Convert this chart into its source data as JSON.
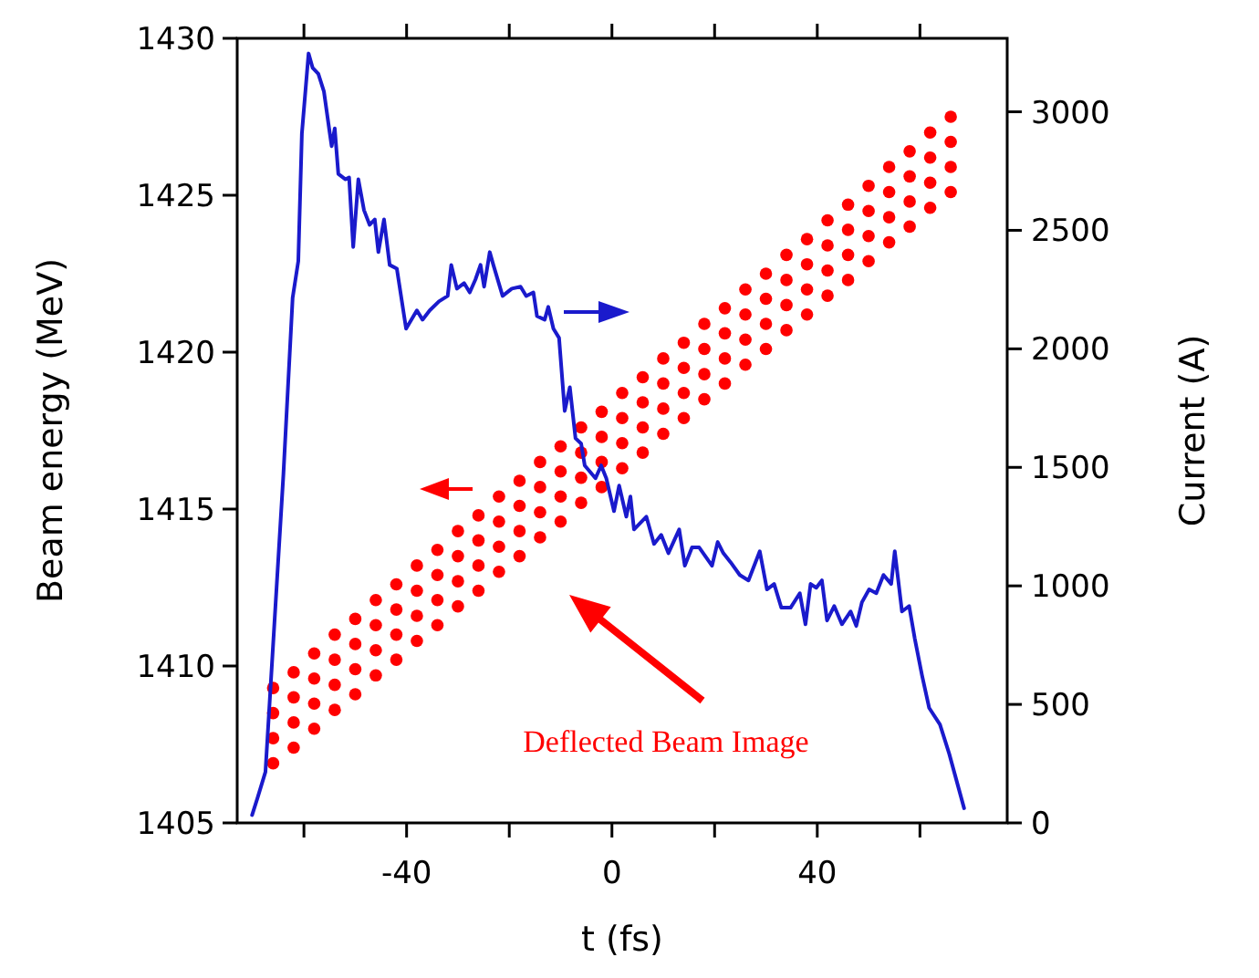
{
  "chart_data": {
    "type": "scatter",
    "xlabel": "t (fs)",
    "ylabel": "Beam energy (MeV)",
    "y2label": "Current (A)",
    "xlim": [
      -73,
      77
    ],
    "ylim": [
      1405,
      1430
    ],
    "y2lim": [
      0,
      3310
    ],
    "xticks": [
      {
        "value": -60,
        "label": null
      },
      -40,
      {
        "value": -20,
        "label": null
      },
      0,
      {
        "value": 20,
        "label": null
      },
      40,
      {
        "value": 60,
        "label": null
      }
    ],
    "yticks": [
      1405,
      1410,
      1415,
      1420,
      1425,
      1430
    ],
    "y2ticks": [
      0,
      500,
      1000,
      1500,
      2000,
      2500,
      3000
    ],
    "grid": false,
    "annotations": [
      "Deflected Beam Image"
    ],
    "series": [
      {
        "color": "#ff0000",
        "marker": "circle",
        "x": [
          -66,
          -66,
          -66,
          -66,
          -62,
          -62,
          -62,
          -62,
          -58,
          -58,
          -58,
          -58,
          -54,
          -54,
          -54,
          -54,
          -50,
          -50,
          -50,
          -50,
          -46,
          -46,
          -46,
          -46,
          -42,
          -42,
          -42,
          -42,
          -38,
          -38,
          -38,
          -38,
          -34,
          -34,
          -34,
          -34,
          -30,
          -30,
          -30,
          -30,
          -26,
          -26,
          -26,
          -26,
          -22,
          -22,
          -22,
          -22,
          -18,
          -18,
          -18,
          -18,
          -14,
          -14,
          -14,
          -14,
          -10,
          -10,
          -10,
          -10,
          -6,
          -6,
          -6,
          -6,
          -2,
          -2,
          -2,
          -2,
          2,
          2,
          2,
          2,
          6,
          6,
          6,
          6,
          10,
          10,
          10,
          10,
          14,
          14,
          14,
          14,
          18,
          18,
          18,
          18,
          22,
          22,
          22,
          22,
          26,
          26,
          26,
          26,
          30,
          30,
          30,
          30,
          34,
          34,
          34,
          34,
          38,
          38,
          38,
          38,
          42,
          42,
          42,
          42,
          46,
          46,
          46,
          46,
          50,
          50,
          50,
          50,
          54,
          54,
          54,
          54,
          58,
          58,
          58,
          58,
          62,
          62,
          62,
          62,
          66,
          66,
          66,
          66
        ],
        "values": [
          1406.9,
          1407.7,
          1408.5,
          1409.3,
          1407.4,
          1408.2,
          1409.0,
          1409.8,
          1408.0,
          1408.8,
          1409.6,
          1410.4,
          1408.6,
          1409.4,
          1410.2,
          1411.0,
          1409.1,
          1409.9,
          1410.7,
          1411.5,
          1409.7,
          1410.5,
          1411.3,
          1412.1,
          1410.2,
          1411.0,
          1411.8,
          1412.6,
          1410.8,
          1411.6,
          1412.4,
          1413.2,
          1411.3,
          1412.1,
          1412.9,
          1413.7,
          1411.9,
          1412.7,
          1413.5,
          1414.3,
          1412.4,
          1413.2,
          1414.0,
          1414.8,
          1413.0,
          1413.8,
          1414.6,
          1415.4,
          1413.5,
          1414.3,
          1415.1,
          1415.9,
          1414.1,
          1414.9,
          1415.7,
          1416.5,
          1414.6,
          1415.4,
          1416.2,
          1417.0,
          1415.2,
          1416.0,
          1416.8,
          1417.6,
          1415.7,
          1416.5,
          1417.3,
          1418.1,
          1416.3,
          1417.1,
          1417.9,
          1418.7,
          1416.8,
          1417.6,
          1418.4,
          1419.2,
          1417.4,
          1418.2,
          1419.0,
          1419.8,
          1417.9,
          1418.7,
          1419.5,
          1420.3,
          1418.5,
          1419.3,
          1420.1,
          1420.9,
          1419.0,
          1419.8,
          1420.6,
          1421.4,
          1419.6,
          1420.4,
          1421.2,
          1422.0,
          1420.1,
          1420.9,
          1421.7,
          1422.5,
          1420.7,
          1421.5,
          1422.3,
          1423.1,
          1421.2,
          1422.0,
          1422.8,
          1423.6,
          1421.8,
          1422.6,
          1423.4,
          1424.2,
          1422.3,
          1423.1,
          1423.9,
          1424.7,
          1422.9,
          1423.7,
          1424.5,
          1425.3,
          1423.5,
          1424.3,
          1425.1,
          1425.9,
          1424.0,
          1424.8,
          1425.6,
          1426.4,
          1424.6,
          1425.4,
          1426.2,
          1427.0,
          1425.1,
          1425.9,
          1426.7,
          1427.5
        ]
      },
      {
        "type": "line",
        "axis": "y2",
        "color": "#1a1acc",
        "line_style": "solid",
        "x": [
          -70.1,
          -69,
          -67.5,
          -64,
          -62.2,
          -61.1,
          -60.4,
          -59.1,
          -58.3,
          -57.2,
          -56.1,
          -55,
          -54.6,
          -54,
          -53.3,
          -51.9,
          -51.2,
          -50.4,
          -49.4,
          -48.3,
          -47.2,
          -46.2,
          -45.5,
          -44.4,
          -43.3,
          -41.9,
          -40.1,
          -38,
          -36.9,
          -35.5,
          -33.7,
          -32,
          -31.3,
          -30.2,
          -28.8,
          -27.7,
          -26.6,
          -25.6,
          -24.9,
          -23.8,
          -23.1,
          -21.3,
          -19.5,
          -17.8,
          -16.7,
          -15.3,
          -14.6,
          -13.1,
          -12.4,
          -11.4,
          -10.3,
          -9.2,
          -8.2,
          -7.1,
          -6,
          -5.3,
          -3.2,
          -2.1,
          -1.1,
          0.4,
          1.4,
          2.8,
          3.6,
          4.3,
          6.7,
          8.2,
          9.6,
          11,
          13.1,
          14.2,
          15.6,
          17,
          19.5,
          20.6,
          21.7,
          23.1,
          24.9,
          26.6,
          28.8,
          30.2,
          31.6,
          33,
          34.8,
          36.6,
          37.7,
          38.7,
          39.8,
          40.9,
          41.9,
          43.3,
          44.8,
          46.5,
          47.6,
          48.7,
          50.1,
          51.5,
          52.9,
          54.4,
          55.1,
          56.5,
          57.9,
          59,
          60.4,
          61.8,
          63.9,
          65.7,
          68.6
        ],
        "values": [
          33,
          108,
          215,
          1470,
          2215,
          2370,
          2908,
          3246,
          3185,
          3160,
          3085,
          2915,
          2855,
          2930,
          2738,
          2715,
          2723,
          2430,
          2715,
          2585,
          2523,
          2546,
          2408,
          2546,
          2354,
          2338,
          2085,
          2162,
          2123,
          2162,
          2200,
          2223,
          2354,
          2254,
          2277,
          2238,
          2292,
          2354,
          2262,
          2408,
          2354,
          2223,
          2254,
          2262,
          2223,
          2238,
          2138,
          2123,
          2177,
          2085,
          2046,
          1738,
          1838,
          1623,
          1600,
          1508,
          1454,
          1508,
          1454,
          1315,
          1423,
          1292,
          1377,
          1238,
          1292,
          1177,
          1215,
          1138,
          1238,
          1085,
          1162,
          1162,
          1085,
          1185,
          1138,
          1100,
          1046,
          1023,
          1146,
          985,
          1008,
          908,
          908,
          969,
          838,
          1008,
          992,
          1023,
          854,
          915,
          838,
          892,
          831,
          931,
          985,
          969,
          1046,
          1008,
          1146,
          892,
          915,
          777,
          623,
          485,
          415,
          292,
          62
        ]
      }
    ]
  }
}
